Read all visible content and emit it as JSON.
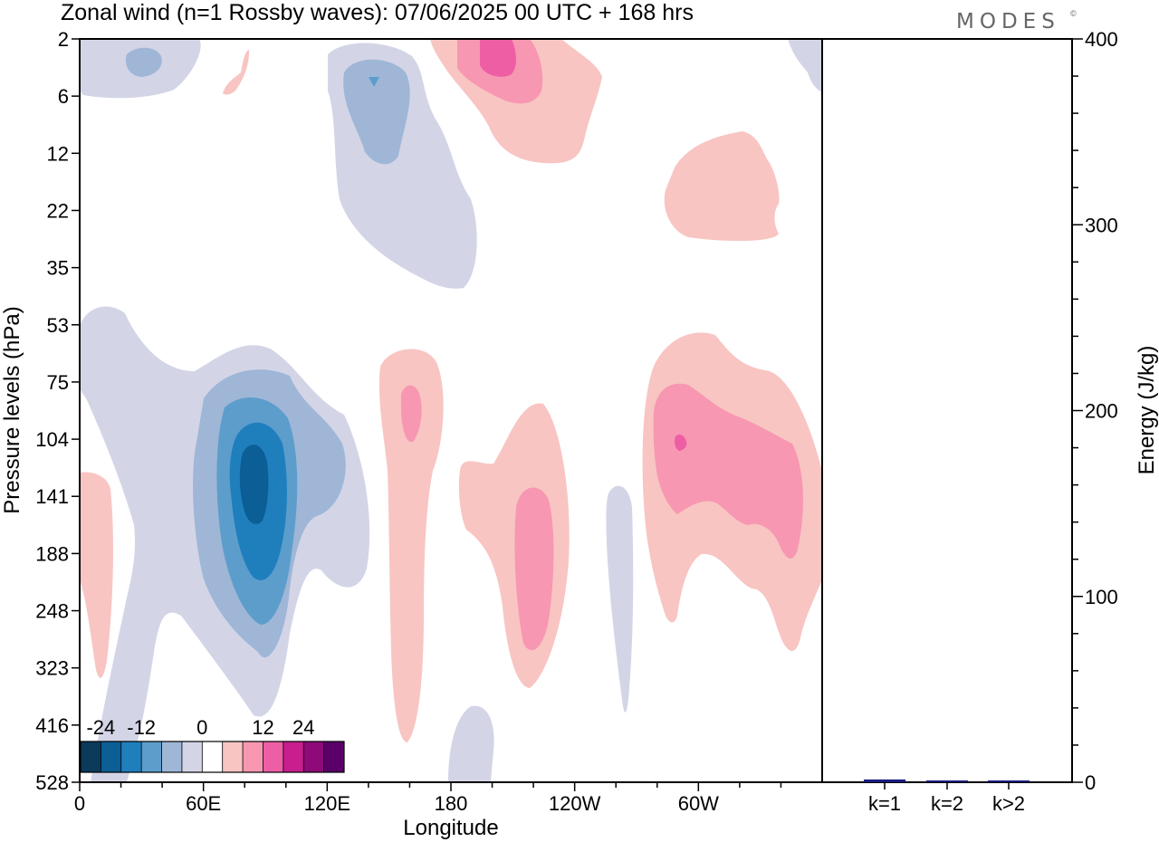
{
  "title": "Zonal wind (n=1 Rossby waves):  07/06/2025  00 UTC  + 168 hrs",
  "brand": "MODES",
  "brand_mark": "©",
  "chart_data": [
    {
      "type": "heatmap",
      "title": "Zonal wind (n=1 Rossby waves):  07/06/2025  00 UTC  + 168 hrs",
      "xlabel": "Longitude",
      "ylabel": "Pressure levels (hPa)",
      "x_tick_labels": [
        "0",
        "60E",
        "120E",
        "180",
        "120W",
        "60W"
      ],
      "x_tick_values_deg_east": [
        0,
        60,
        120,
        180,
        240,
        300
      ],
      "xlim_deg_east": [
        0,
        360
      ],
      "y_tick_labels": [
        "2",
        "6",
        "12",
        "22",
        "35",
        "53",
        "75",
        "104",
        "141",
        "188",
        "248",
        "323",
        "416",
        "528"
      ],
      "colorbar": {
        "tick_labels": [
          "-24",
          "-12",
          "0",
          "12",
          "24"
        ],
        "levels": [
          -24,
          -20,
          -16,
          -12,
          -8,
          -4,
          4,
          8,
          12,
          16,
          20,
          24
        ],
        "colors": [
          "#0c3a5a",
          "#0b5f96",
          "#1f7fbd",
          "#5d9dcc",
          "#9fb6d7",
          "#d3d5e7",
          "#ffffff",
          "#f8c5c2",
          "#f797b2",
          "#ee5ea4",
          "#c81e8e",
          "#8e0a78",
          "#5a0068"
        ]
      },
      "features": [
        {
          "sign": "negative",
          "peak": -24,
          "lon_deg_east": 85,
          "level_hPa": 125
        },
        {
          "sign": "negative",
          "peak": -8,
          "lon_deg_east": 143,
          "level_hPa": 5
        },
        {
          "sign": "negative",
          "peak": -4,
          "lon_deg_east": 30,
          "level_hPa": 4
        },
        {
          "sign": "negative",
          "peak": -4,
          "lon_deg_east": 257,
          "level_hPa": 250
        },
        {
          "sign": "negative",
          "peak": -4,
          "lon_deg_east": 193,
          "level_hPa": 480
        },
        {
          "sign": "positive",
          "peak": 8,
          "lon_deg_east": 161,
          "level_hPa": 90
        },
        {
          "sign": "positive",
          "peak": 8,
          "lon_deg_east": 220,
          "level_hPa": 200
        },
        {
          "sign": "positive",
          "peak": 12,
          "lon_deg_east": 293,
          "level_hPa": 105
        },
        {
          "sign": "positive",
          "peak": 12,
          "lon_deg_east": 199,
          "level_hPa": 3
        },
        {
          "sign": "positive",
          "peak": 4,
          "lon_deg_east": 325,
          "level_hPa": 22
        },
        {
          "sign": "positive",
          "peak": 4,
          "lon_deg_east": 10,
          "level_hPa": 160
        },
        {
          "sign": "positive",
          "peak": 4,
          "lon_deg_east": 78,
          "level_hPa": 4
        }
      ]
    },
    {
      "type": "bar",
      "ylabel": "Energy (J/kg)",
      "categories": [
        "k=1",
        "k=2",
        "k>2"
      ],
      "values": [
        1.5,
        0.7,
        0.7
      ],
      "ylim": [
        0,
        400
      ],
      "y_tick_labels": [
        "0",
        "100",
        "200",
        "300",
        "400"
      ],
      "bar_color": "#1a1a80"
    }
  ]
}
